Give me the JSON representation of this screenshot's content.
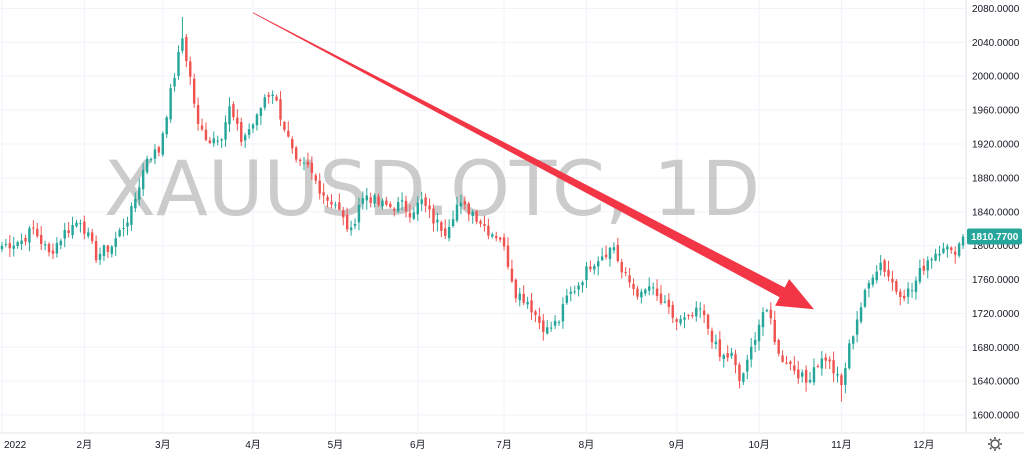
{
  "chart_data": {
    "type": "candlestick",
    "symbol": "XAUUSD.OTC",
    "interval": "1D",
    "watermark": "XAUUSD.OTC, 1D",
    "ylim": [
      1580,
      2090
    ],
    "yticks": [
      1600,
      1640,
      1680,
      1720,
      1760,
      1800,
      1840,
      1880,
      1920,
      1960,
      2000,
      2040,
      2080
    ],
    "ytick_labels": [
      "1600.0000",
      "1640.0000",
      "1680.0000",
      "1720.0000",
      "1760.0000",
      "1800.0000",
      "1840.0000",
      "1880.0000",
      "1920.0000",
      "1960.0000",
      "2000.0000",
      "2040.0000",
      "2080.0000"
    ],
    "xtick_labels": [
      "2022",
      "2月",
      "3月",
      "4月",
      "5月",
      "6月",
      "7月",
      "8月",
      "9月",
      "10月",
      "11月",
      "12月"
    ],
    "xtick_bar_index": [
      0,
      21,
      41,
      64,
      85,
      106,
      128,
      149,
      172,
      193,
      214,
      235
    ],
    "last_price_label": "1810.7700",
    "last_price": 1810.77,
    "grid": true,
    "colors": {
      "up": "#26a69a",
      "down": "#ef5350",
      "grid": "#f0f3fa",
      "axis_text": "#131722",
      "arrow": "#f23645",
      "price_tag": "#26a69a"
    },
    "arrow": {
      "from": {
        "bar": 64,
        "price": 2075
      },
      "to": {
        "bar": 207,
        "price": 1725
      }
    },
    "close_anchors": [
      [
        0,
        1800
      ],
      [
        5,
        1806
      ],
      [
        8,
        1820
      ],
      [
        12,
        1790
      ],
      [
        16,
        1816
      ],
      [
        20,
        1831
      ],
      [
        24,
        1788
      ],
      [
        28,
        1800
      ],
      [
        33,
        1840
      ],
      [
        37,
        1905
      ],
      [
        40,
        1912
      ],
      [
        43,
        1980
      ],
      [
        46,
        2045
      ],
      [
        48,
        1998
      ],
      [
        50,
        1940
      ],
      [
        53,
        1925
      ],
      [
        56,
        1932
      ],
      [
        58,
        1962
      ],
      [
        61,
        1925
      ],
      [
        65,
        1950
      ],
      [
        67,
        1976
      ],
      [
        69,
        1982
      ],
      [
        72,
        1940
      ],
      [
        75,
        1895
      ],
      [
        78,
        1892
      ],
      [
        81,
        1868
      ],
      [
        83,
        1855
      ],
      [
        85,
        1850
      ],
      [
        87,
        1830
      ],
      [
        89,
        1815
      ],
      [
        91,
        1850
      ],
      [
        93,
        1860
      ],
      [
        96,
        1849
      ],
      [
        99,
        1846
      ],
      [
        102,
        1848
      ],
      [
        104,
        1840
      ],
      [
        107,
        1852
      ],
      [
        110,
        1830
      ],
      [
        113,
        1818
      ],
      [
        116,
        1848
      ],
      [
        120,
        1840
      ],
      [
        124,
        1818
      ],
      [
        127,
        1810
      ],
      [
        129,
        1780
      ],
      [
        131,
        1745
      ],
      [
        134,
        1735
      ],
      [
        137,
        1710
      ],
      [
        139,
        1700
      ],
      [
        142,
        1712
      ],
      [
        144,
        1738
      ],
      [
        147,
        1755
      ],
      [
        150,
        1778
      ],
      [
        153,
        1790
      ],
      [
        156,
        1799
      ],
      [
        158,
        1768
      ],
      [
        161,
        1750
      ],
      [
        163,
        1740
      ],
      [
        165,
        1752
      ],
      [
        167,
        1738
      ],
      [
        170,
        1722
      ],
      [
        172,
        1710
      ],
      [
        175,
        1712
      ],
      [
        178,
        1724
      ],
      [
        181,
        1692
      ],
      [
        183,
        1668
      ],
      [
        186,
        1670
      ],
      [
        188,
        1640
      ],
      [
        190,
        1660
      ],
      [
        192,
        1695
      ],
      [
        194,
        1722
      ],
      [
        196,
        1712
      ],
      [
        198,
        1670
      ],
      [
        200,
        1665
      ],
      [
        203,
        1650
      ],
      [
        205,
        1638
      ],
      [
        207,
        1658
      ],
      [
        210,
        1668
      ],
      [
        212,
        1652
      ],
      [
        214,
        1634
      ],
      [
        216,
        1680
      ],
      [
        218,
        1715
      ],
      [
        220,
        1742
      ],
      [
        222,
        1768
      ],
      [
        224,
        1780
      ],
      [
        226,
        1765
      ],
      [
        228,
        1748
      ],
      [
        230,
        1744
      ],
      [
        232,
        1748
      ],
      [
        234,
        1768
      ],
      [
        236,
        1784
      ],
      [
        238,
        1792
      ],
      [
        240,
        1802
      ],
      [
        242,
        1790
      ],
      [
        244,
        1802
      ],
      [
        245,
        1810.77
      ]
    ],
    "notable_extremes": {
      "high": {
        "bar": 46,
        "price": 2070
      },
      "low": {
        "bar": 214,
        "price": 1616
      }
    }
  }
}
